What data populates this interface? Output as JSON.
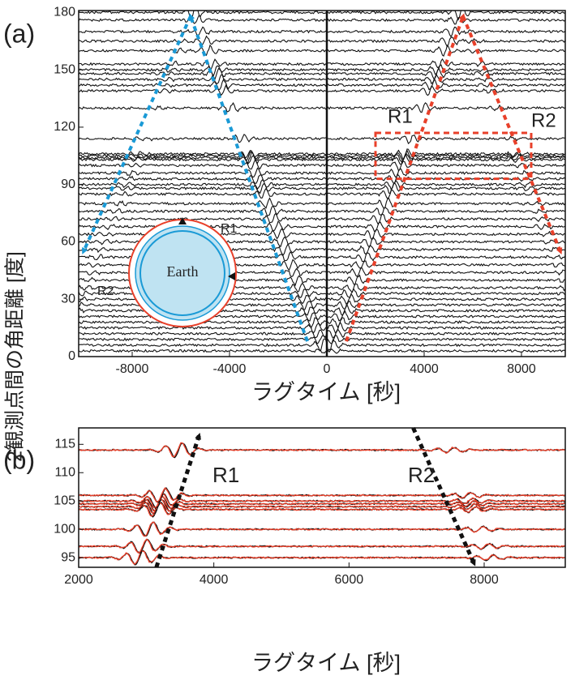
{
  "chart_data": [
    {
      "type": "seismogram",
      "panel_label": "(a)",
      "xlabel": "ラグタイム [秒]",
      "ylabel": "2観測点間の角距離 [度]",
      "xlim": [
        -10200,
        9800
      ],
      "ylim": [
        0,
        181
      ],
      "xticks": [
        -8000,
        -4000,
        0,
        4000,
        8000
      ],
      "yticks": [
        0,
        30,
        60,
        90,
        120,
        150,
        180
      ],
      "traces": [
        3,
        6,
        9,
        12,
        15,
        18,
        21,
        24,
        27,
        30,
        33,
        36,
        40,
        44,
        48,
        52,
        56,
        60,
        64,
        68,
        72,
        76,
        80,
        85,
        88,
        90,
        93,
        96,
        100,
        103,
        104,
        105,
        106,
        114,
        130,
        139,
        142,
        145,
        148,
        150,
        153,
        160,
        165,
        170,
        176,
        180
      ],
      "color": "#111111",
      "annotations": [
        "R1",
        "R2"
      ],
      "inset": {
        "label": "Earth",
        "paths": [
          "R1",
          "R2"
        ]
      }
    },
    {
      "type": "seismogram",
      "panel_label": "(b)",
      "xlabel": "ラグタイム [秒]",
      "xlim": [
        2000,
        9200
      ],
      "ylim": [
        93.3,
        117.9
      ],
      "xticks": [
        2000,
        4000,
        6000,
        8000
      ],
      "yticks": [
        95,
        100,
        105,
        110,
        115
      ],
      "traces": [
        95,
        97,
        100,
        103.5,
        104,
        104.5,
        105,
        106,
        114
      ],
      "colors": [
        "#111111",
        "#e8402a"
      ],
      "annotations": [
        "R1",
        "R2"
      ]
    }
  ]
}
